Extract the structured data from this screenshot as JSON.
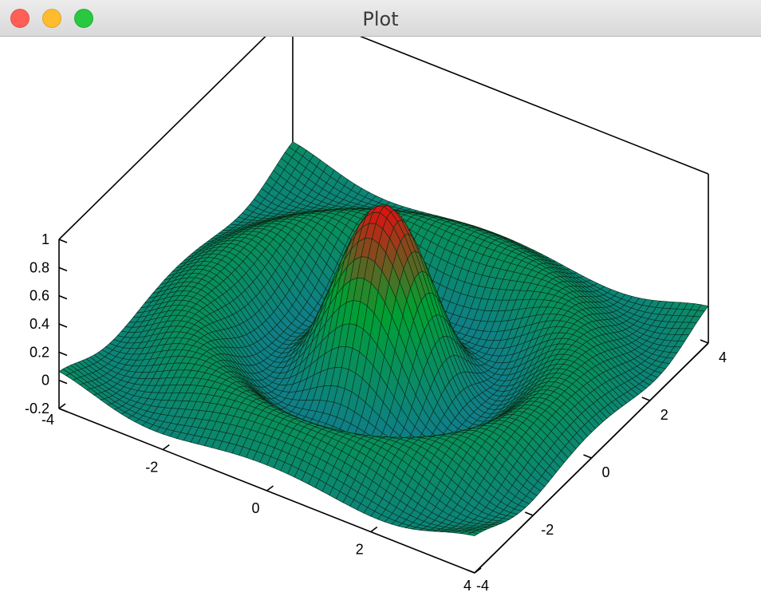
{
  "window": {
    "title": "Plot",
    "buttons": {
      "close_color": "#ff5f57",
      "minimize_color": "#febc2e",
      "maximize_color": "#28c840"
    }
  },
  "chart_data": {
    "type": "surface",
    "title": "",
    "function": "sin(r)/r",
    "x": {
      "range": [
        -4,
        4
      ],
      "ticks": [
        -4,
        -2,
        0,
        2,
        4
      ]
    },
    "y": {
      "range": [
        -4,
        4
      ],
      "ticks": [
        -4,
        -2,
        0,
        2,
        4
      ]
    },
    "z": {
      "range": [
        -0.2,
        1
      ],
      "ticks": [
        -0.2,
        0,
        0.2,
        0.4,
        0.6,
        0.8,
        1
      ]
    },
    "z_tick_labels": [
      "-0.2",
      "0",
      "0.2",
      "0.4",
      "0.6",
      "0.8",
      "1"
    ],
    "x_tick_labels": [
      "-4",
      "-2",
      "0",
      "2",
      "4"
    ],
    "y_tick_labels": [
      "-4",
      "-2",
      "0",
      "2",
      "4"
    ],
    "mesh": "black wireframe",
    "colormap": [
      "#0f7f88",
      "#00a030",
      "#e01010"
    ],
    "grid": false,
    "legend": "none"
  }
}
